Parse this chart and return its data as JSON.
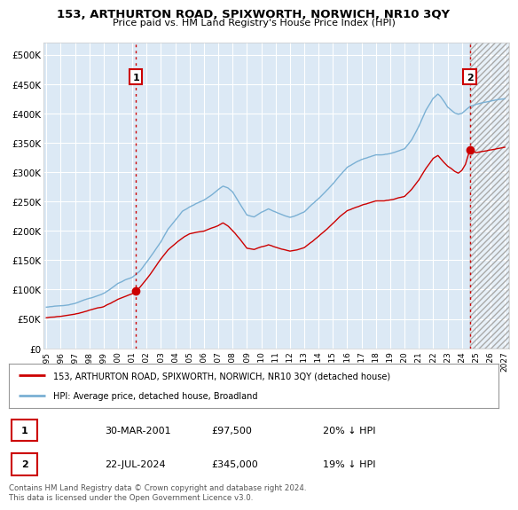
{
  "title": "153, ARTHURTON ROAD, SPIXWORTH, NORWICH, NR10 3QY",
  "subtitle": "Price paid vs. HM Land Registry's House Price Index (HPI)",
  "legend_property": "153, ARTHURTON ROAD, SPIXWORTH, NORWICH, NR10 3QY (detached house)",
  "legend_hpi": "HPI: Average price, detached house, Broadland",
  "table_rows": [
    {
      "label": "1",
      "date": "30-MAR-2001",
      "price": "£97,500",
      "hpi": "20% ↓ HPI"
    },
    {
      "label": "2",
      "date": "22-JUL-2024",
      "price": "£345,000",
      "hpi": "19% ↓ HPI"
    }
  ],
  "footer": "Contains HM Land Registry data © Crown copyright and database right 2024.\nThis data is licensed under the Open Government Licence v3.0.",
  "property_color": "#cc0000",
  "hpi_color": "#7ab0d4",
  "annotation_border_color": "#cc0000",
  "yticks": [
    0,
    50000,
    100000,
    150000,
    200000,
    250000,
    300000,
    350000,
    400000,
    450000,
    500000
  ],
  "ytick_labels": [
    "£0",
    "£50K",
    "£100K",
    "£150K",
    "£200K",
    "£250K",
    "£300K",
    "£350K",
    "£400K",
    "£450K",
    "£500K"
  ],
  "chart_bg": "#dce9f5",
  "grid_color": "#ffffff",
  "sale_year1": 2001.25,
  "sale_year2": 2024.55,
  "sale_price1": 97500,
  "sale_price2": 345000
}
